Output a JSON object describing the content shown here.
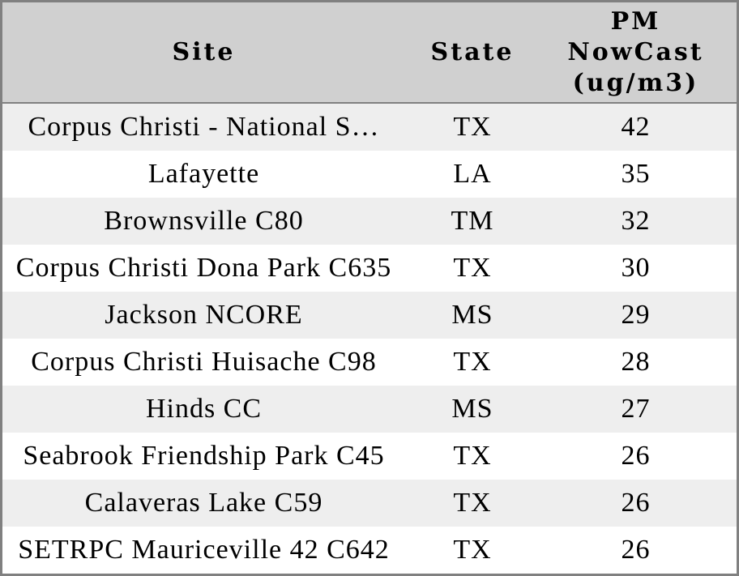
{
  "colors": {
    "border": "#808080",
    "header_bg": "#d0d0d0",
    "row_stripe_bg": "#eeeeee",
    "row_bg": "#ffffff",
    "text": "#000000"
  },
  "table": {
    "header": {
      "site": "Site",
      "state": "State",
      "pm_line1": "PM",
      "pm_line2": "NowCast",
      "pm_line3": "(ug/m3)"
    },
    "rows": [
      {
        "site": "Corpus Christi - National S…",
        "state": "TX",
        "value": 42
      },
      {
        "site": "Lafayette",
        "state": "LA",
        "value": 35
      },
      {
        "site": "Brownsville C80",
        "state": "TM",
        "value": 32
      },
      {
        "site": "Corpus Christi Dona Park C635",
        "state": "TX",
        "value": 30
      },
      {
        "site": "Jackson NCORE",
        "state": "MS",
        "value": 29
      },
      {
        "site": "Corpus Christi Huisache C98",
        "state": "TX",
        "value": 28
      },
      {
        "site": "Hinds CC",
        "state": "MS",
        "value": 27
      },
      {
        "site": "Seabrook Friendship Park C45",
        "state": "TX",
        "value": 26
      },
      {
        "site": "Calaveras Lake C59",
        "state": "TX",
        "value": 26
      },
      {
        "site": "SETRPC Mauriceville 42 C642",
        "state": "TX",
        "value": 26
      }
    ]
  },
  "chart_data": {
    "type": "table",
    "columns": [
      "Site",
      "State",
      "PM NowCast (ug/m3)"
    ],
    "rows": [
      [
        "Corpus Christi - National S…",
        "TX",
        42
      ],
      [
        "Lafayette",
        "LA",
        35
      ],
      [
        "Brownsville C80",
        "TM",
        32
      ],
      [
        "Corpus Christi Dona Park C635",
        "TX",
        30
      ],
      [
        "Jackson NCORE",
        "MS",
        29
      ],
      [
        "Corpus Christi Huisache C98",
        "TX",
        28
      ],
      [
        "Hinds CC",
        "MS",
        27
      ],
      [
        "Seabrook Friendship Park C45",
        "TX",
        26
      ],
      [
        "Calaveras Lake C59",
        "TX",
        26
      ],
      [
        "SETRPC Mauriceville 42 C642",
        "TX",
        26
      ]
    ]
  }
}
